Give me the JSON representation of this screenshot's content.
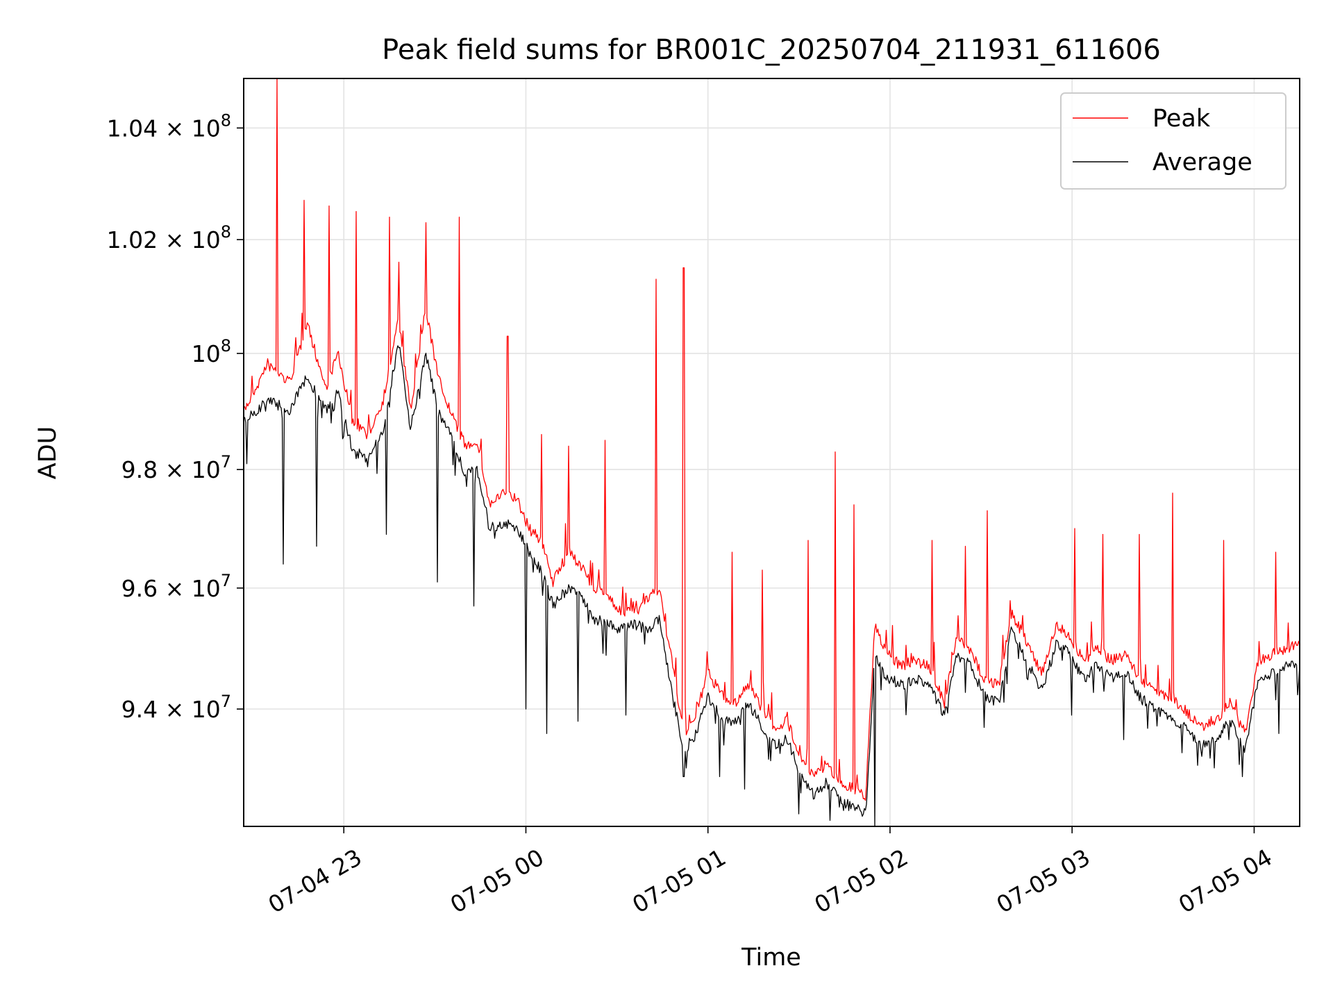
{
  "chart_data": {
    "type": "line",
    "title": "Peak field sums for BR001C_20250704_211931_611606",
    "xlabel": "Time",
    "ylabel": "ADU",
    "xlim": [
      "2025-07-04 22:27",
      "2025-07-05 04:15"
    ],
    "ylim": [
      92100000,
      104900000
    ],
    "yscale": "log",
    "grid": true,
    "legend_position": "top-right",
    "xticks": [
      {
        "t": "2025-07-04 23:00",
        "label": "07-04 23"
      },
      {
        "t": "2025-07-05 00:00",
        "label": "07-05 00"
      },
      {
        "t": "2025-07-05 01:00",
        "label": "07-05 01"
      },
      {
        "t": "2025-07-05 02:00",
        "label": "07-05 02"
      },
      {
        "t": "2025-07-05 03:00",
        "label": "07-05 03"
      },
      {
        "t": "2025-07-05 04:00",
        "label": "07-05 04"
      }
    ],
    "yticks": [
      {
        "value": 94000000,
        "mantissa": "9.4",
        "exponent": "7"
      },
      {
        "value": 96000000,
        "mantissa": "9.6",
        "exponent": "7"
      },
      {
        "value": 98000000,
        "mantissa": "9.8",
        "exponent": "7"
      },
      {
        "value": 100000000,
        "mantissa": "",
        "exponent": "8"
      },
      {
        "value": 102000000,
        "mantissa": "1.02",
        "exponent": "8"
      },
      {
        "value": 104000000,
        "mantissa": "1.04",
        "exponent": "8"
      }
    ],
    "series": [
      {
        "name": "Peak",
        "color": "#ff0000",
        "points": [
          [
            "2025-07-04 22:27",
            99000000
          ],
          [
            "2025-07-04 22:35",
            99800000
          ],
          [
            "2025-07-04 22:42",
            99500000
          ],
          [
            "2025-07-04 22:48",
            100500000
          ],
          [
            "2025-07-04 22:54",
            99400000
          ],
          [
            "2025-07-04 22:58",
            100000000
          ],
          [
            "2025-07-04 23:03",
            98800000
          ],
          [
            "2025-07-04 23:08",
            98600000
          ],
          [
            "2025-07-04 23:13",
            99200000
          ],
          [
            "2025-07-04 23:18",
            100600000
          ],
          [
            "2025-07-04 23:22",
            99000000
          ],
          [
            "2025-07-04 23:27",
            100800000
          ],
          [
            "2025-07-04 23:31",
            99600000
          ],
          [
            "2025-07-04 23:35",
            99000000
          ],
          [
            "2025-07-04 23:40",
            98400000
          ],
          [
            "2025-07-04 23:44",
            98500000
          ],
          [
            "2025-07-04 23:48",
            97400000
          ],
          [
            "2025-07-04 23:53",
            97600000
          ],
          [
            "2025-07-04 23:57",
            97500000
          ],
          [
            "2025-07-05 00:01",
            97000000
          ],
          [
            "2025-07-05 00:05",
            96800000
          ],
          [
            "2025-07-05 00:09",
            96100000
          ],
          [
            "2025-07-05 00:14",
            96600000
          ],
          [
            "2025-07-05 00:18",
            96400000
          ],
          [
            "2025-07-05 00:22",
            96000000
          ],
          [
            "2025-07-05 00:27",
            95900000
          ],
          [
            "2025-07-05 00:31",
            95600000
          ],
          [
            "2025-07-05 00:36",
            95600000
          ],
          [
            "2025-07-05 00:40",
            95800000
          ],
          [
            "2025-07-05 00:44",
            96000000
          ],
          [
            "2025-07-05 00:48",
            94800000
          ],
          [
            "2025-07-05 00:52",
            93600000
          ],
          [
            "2025-07-05 00:56",
            93900000
          ],
          [
            "2025-07-05 01:00",
            94600000
          ],
          [
            "2025-07-05 01:05",
            94200000
          ],
          [
            "2025-07-05 01:09",
            94100000
          ],
          [
            "2025-07-05 01:13",
            94400000
          ],
          [
            "2025-07-05 01:18",
            94000000
          ],
          [
            "2025-07-05 01:22",
            93700000
          ],
          [
            "2025-07-05 01:26",
            93800000
          ],
          [
            "2025-07-05 01:31",
            93200000
          ],
          [
            "2025-07-05 01:35",
            92900000
          ],
          [
            "2025-07-05 01:39",
            93100000
          ],
          [
            "2025-07-05 01:44",
            92800000
          ],
          [
            "2025-07-05 01:48",
            92700000
          ],
          [
            "2025-07-05 01:52",
            92600000
          ],
          [
            "2025-07-05 01:55",
            95400000
          ],
          [
            "2025-07-05 01:59",
            94900000
          ],
          [
            "2025-07-05 02:04",
            94700000
          ],
          [
            "2025-07-05 02:08",
            94800000
          ],
          [
            "2025-07-05 02:13",
            94700000
          ],
          [
            "2025-07-05 02:18",
            94100000
          ],
          [
            "2025-07-05 02:22",
            95200000
          ],
          [
            "2025-07-05 02:27",
            94900000
          ],
          [
            "2025-07-05 02:31",
            94500000
          ],
          [
            "2025-07-05 02:36",
            94400000
          ],
          [
            "2025-07-05 02:40",
            95600000
          ],
          [
            "2025-07-05 02:45",
            95100000
          ],
          [
            "2025-07-05 02:50",
            94600000
          ],
          [
            "2025-07-05 02:55",
            95400000
          ],
          [
            "2025-07-05 02:59",
            95200000
          ],
          [
            "2025-07-05 03:04",
            94800000
          ],
          [
            "2025-07-05 03:08",
            95000000
          ],
          [
            "2025-07-05 03:13",
            94800000
          ],
          [
            "2025-07-05 03:18",
            94900000
          ],
          [
            "2025-07-05 03:22",
            94500000
          ],
          [
            "2025-07-05 03:27",
            94300000
          ],
          [
            "2025-07-05 03:32",
            94200000
          ],
          [
            "2025-07-05 03:37",
            94000000
          ],
          [
            "2025-07-05 03:42",
            93700000
          ],
          [
            "2025-07-05 03:47",
            93800000
          ],
          [
            "2025-07-05 03:52",
            94100000
          ],
          [
            "2025-07-05 03:57",
            93600000
          ],
          [
            "2025-07-05 04:01",
            94700000
          ],
          [
            "2025-07-05 04:06",
            94900000
          ],
          [
            "2025-07-05 04:11",
            95000000
          ],
          [
            "2025-07-05 04:15",
            95100000
          ]
        ],
        "spikes": [
          [
            "2025-07-04 22:38",
            104900000
          ],
          [
            "2025-07-04 22:47",
            102700000
          ],
          [
            "2025-07-04 22:55",
            102600000
          ],
          [
            "2025-07-04 23:04",
            102500000
          ],
          [
            "2025-07-04 23:15",
            102400000
          ],
          [
            "2025-07-04 23:18",
            101600000
          ],
          [
            "2025-07-04 23:27",
            102300000
          ],
          [
            "2025-07-04 23:38",
            102400000
          ],
          [
            "2025-07-04 23:54",
            100300000
          ],
          [
            "2025-07-05 00:05",
            98600000
          ],
          [
            "2025-07-05 00:14",
            98400000
          ],
          [
            "2025-07-05 00:26",
            98500000
          ],
          [
            "2025-07-05 00:43",
            101300000
          ],
          [
            "2025-07-05 00:52",
            101500000
          ],
          [
            "2025-07-05 01:08",
            96600000
          ],
          [
            "2025-07-05 01:18",
            96300000
          ],
          [
            "2025-07-05 01:33",
            96800000
          ],
          [
            "2025-07-05 01:42",
            98300000
          ],
          [
            "2025-07-05 01:48",
            97400000
          ],
          [
            "2025-07-05 02:14",
            96800000
          ],
          [
            "2025-07-05 02:25",
            96700000
          ],
          [
            "2025-07-05 02:32",
            97300000
          ],
          [
            "2025-07-05 03:01",
            97000000
          ],
          [
            "2025-07-05 03:10",
            96900000
          ],
          [
            "2025-07-05 03:22",
            96900000
          ],
          [
            "2025-07-05 03:33",
            97600000
          ],
          [
            "2025-07-05 03:50",
            96800000
          ],
          [
            "2025-07-05 04:07",
            96600000
          ]
        ]
      },
      {
        "name": "Average",
        "color": "#000000",
        "points": [
          [
            "2025-07-04 22:27",
            98800000
          ],
          [
            "2025-07-04 22:35",
            99200000
          ],
          [
            "2025-07-04 22:42",
            99000000
          ],
          [
            "2025-07-04 22:48",
            99600000
          ],
          [
            "2025-07-04 22:54",
            99000000
          ],
          [
            "2025-07-04 22:58",
            99300000
          ],
          [
            "2025-07-04 23:03",
            98300000
          ],
          [
            "2025-07-04 23:08",
            98200000
          ],
          [
            "2025-07-04 23:13",
            98700000
          ],
          [
            "2025-07-04 23:18",
            100200000
          ],
          [
            "2025-07-04 23:22",
            98700000
          ],
          [
            "2025-07-04 23:27",
            100000000
          ],
          [
            "2025-07-04 23:31",
            99000000
          ],
          [
            "2025-07-04 23:35",
            98600000
          ],
          [
            "2025-07-04 23:40",
            97900000
          ],
          [
            "2025-07-04 23:44",
            98000000
          ],
          [
            "2025-07-04 23:48",
            97000000
          ],
          [
            "2025-07-04 23:53",
            97100000
          ],
          [
            "2025-07-04 23:57",
            97000000
          ],
          [
            "2025-07-05 00:01",
            96600000
          ],
          [
            "2025-07-05 00:05",
            96300000
          ],
          [
            "2025-07-05 00:09",
            95700000
          ],
          [
            "2025-07-05 00:14",
            96000000
          ],
          [
            "2025-07-05 00:18",
            95900000
          ],
          [
            "2025-07-05 00:22",
            95500000
          ],
          [
            "2025-07-05 00:27",
            95400000
          ],
          [
            "2025-07-05 00:31",
            95300000
          ],
          [
            "2025-07-05 00:36",
            95400000
          ],
          [
            "2025-07-05 00:40",
            95300000
          ],
          [
            "2025-07-05 00:44",
            95500000
          ],
          [
            "2025-07-05 00:48",
            94300000
          ],
          [
            "2025-07-05 00:52",
            93300000
          ],
          [
            "2025-07-05 00:56",
            93600000
          ],
          [
            "2025-07-05 01:00",
            94200000
          ],
          [
            "2025-07-05 01:05",
            93800000
          ],
          [
            "2025-07-05 01:09",
            93800000
          ],
          [
            "2025-07-05 01:13",
            94100000
          ],
          [
            "2025-07-05 01:18",
            93700000
          ],
          [
            "2025-07-05 01:22",
            93400000
          ],
          [
            "2025-07-05 01:26",
            93500000
          ],
          [
            "2025-07-05 01:31",
            92900000
          ],
          [
            "2025-07-05 01:35",
            92600000
          ],
          [
            "2025-07-05 01:39",
            92800000
          ],
          [
            "2025-07-05 01:44",
            92500000
          ],
          [
            "2025-07-05 01:48",
            92400000
          ],
          [
            "2025-07-05 01:52",
            92300000
          ],
          [
            "2025-07-05 01:55",
            94900000
          ],
          [
            "2025-07-05 01:59",
            94500000
          ],
          [
            "2025-07-05 02:04",
            94400000
          ],
          [
            "2025-07-05 02:08",
            94500000
          ],
          [
            "2025-07-05 02:13",
            94400000
          ],
          [
            "2025-07-05 02:18",
            93900000
          ],
          [
            "2025-07-05 02:22",
            94900000
          ],
          [
            "2025-07-05 02:27",
            94700000
          ],
          [
            "2025-07-05 02:31",
            94200000
          ],
          [
            "2025-07-05 02:36",
            94100000
          ],
          [
            "2025-07-05 02:40",
            95300000
          ],
          [
            "2025-07-05 02:45",
            94800000
          ],
          [
            "2025-07-05 02:50",
            94300000
          ],
          [
            "2025-07-05 02:55",
            95100000
          ],
          [
            "2025-07-05 02:59",
            94900000
          ],
          [
            "2025-07-05 03:04",
            94500000
          ],
          [
            "2025-07-05 03:08",
            94700000
          ],
          [
            "2025-07-05 03:13",
            94500000
          ],
          [
            "2025-07-05 03:18",
            94600000
          ],
          [
            "2025-07-05 03:22",
            94200000
          ],
          [
            "2025-07-05 03:27",
            94000000
          ],
          [
            "2025-07-05 03:32",
            93900000
          ],
          [
            "2025-07-05 03:37",
            93700000
          ],
          [
            "2025-07-05 03:42",
            93400000
          ],
          [
            "2025-07-05 03:47",
            93500000
          ],
          [
            "2025-07-05 03:52",
            93800000
          ],
          [
            "2025-07-05 03:57",
            93300000
          ],
          [
            "2025-07-05 04:01",
            94400000
          ],
          [
            "2025-07-05 04:06",
            94600000
          ],
          [
            "2025-07-05 04:11",
            94700000
          ],
          [
            "2025-07-05 04:15",
            94800000
          ]
        ],
        "dips": [
          [
            "2025-07-04 22:28",
            98100000
          ],
          [
            "2025-07-04 22:40",
            96400000
          ],
          [
            "2025-07-04 22:51",
            96700000
          ],
          [
            "2025-07-04 23:14",
            96900000
          ],
          [
            "2025-07-04 23:31",
            96100000
          ],
          [
            "2025-07-04 23:43",
            95700000
          ],
          [
            "2025-07-05 00:00",
            94000000
          ],
          [
            "2025-07-05 00:07",
            93600000
          ],
          [
            "2025-07-05 00:17",
            93800000
          ],
          [
            "2025-07-05 00:33",
            93900000
          ],
          [
            "2025-07-05 00:52",
            92900000
          ],
          [
            "2025-07-05 01:04",
            92900000
          ],
          [
            "2025-07-05 01:12",
            92700000
          ],
          [
            "2025-07-05 01:30",
            92300000
          ],
          [
            "2025-07-05 01:55",
            92100000
          ],
          [
            "2025-07-05 02:31",
            93700000
          ],
          [
            "2025-07-05 03:00",
            93900000
          ],
          [
            "2025-07-05 03:17",
            93500000
          ],
          [
            "2025-07-05 03:56",
            92900000
          ],
          [
            "2025-07-05 04:08",
            93600000
          ]
        ]
      }
    ]
  }
}
